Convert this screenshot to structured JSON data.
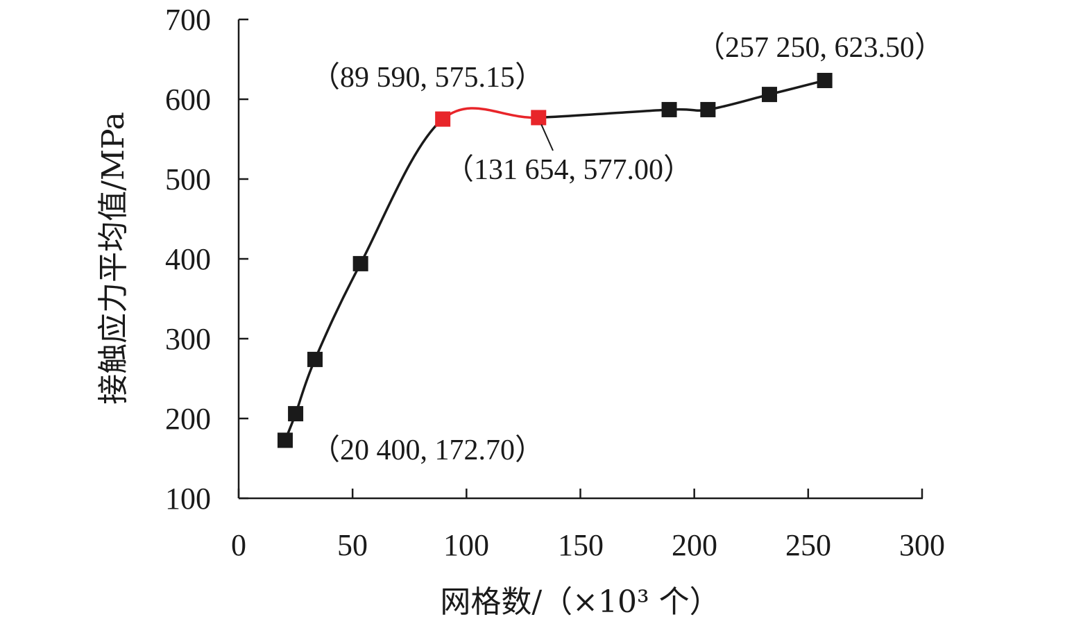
{
  "chart_data": {
    "type": "line",
    "xlabel": "网格数/（×10³ 个）",
    "ylabel": "接触应力平均值/MPa",
    "xlim": [
      0,
      300
    ],
    "ylim": [
      100,
      700
    ],
    "x_ticks": [
      "0",
      "50",
      "100",
      "150",
      "200",
      "250",
      "300"
    ],
    "y_ticks": [
      "100",
      "200",
      "300",
      "400",
      "500",
      "600",
      "700"
    ],
    "grid": false,
    "legend": "none",
    "series": [
      {
        "x": [
          20.4,
          25.0,
          33.5,
          53.5,
          89.59,
          131.654,
          189.0,
          206.0,
          233.0,
          257.25
        ],
        "values": [
          172.7,
          206,
          274,
          394,
          575.15,
          577.0,
          587,
          587,
          606,
          623.5
        ],
        "highlight_segment": [
          4,
          5
        ]
      }
    ],
    "colors": {
      "line": "#1a1a1a",
      "marker": "#1a1a1a",
      "highlight": "#e8252a"
    },
    "annotations": [
      {
        "text": "（257 250, 623.50）",
        "point_index": 9
      },
      {
        "text": "（89 590, 575.15）",
        "point_index": 4
      },
      {
        "text": "（131 654, 577.00）",
        "point_index": 5
      },
      {
        "text": "（20 400, 172.70）",
        "point_index": 0
      }
    ]
  }
}
